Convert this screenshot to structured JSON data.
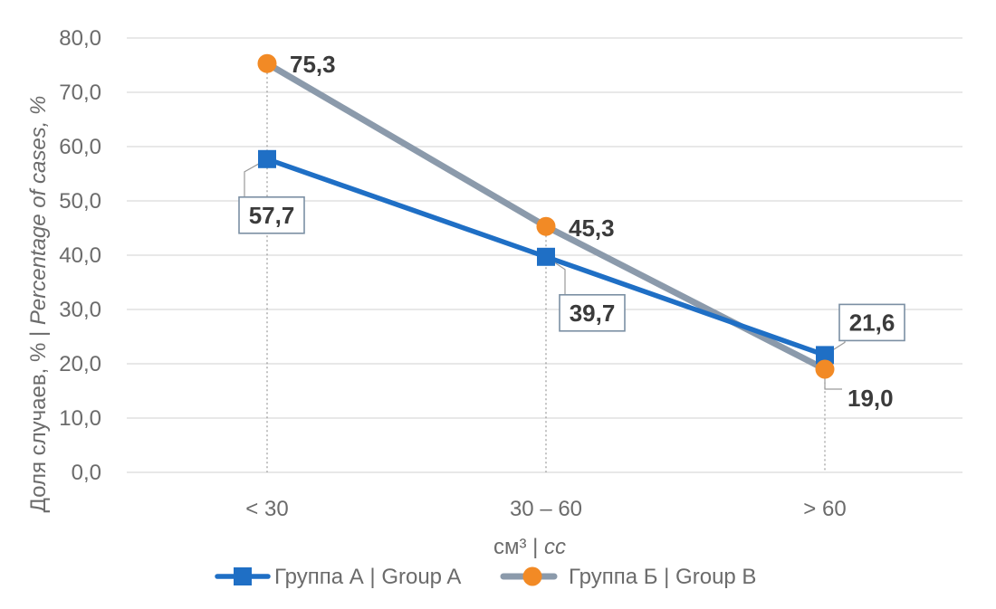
{
  "chart_data": {
    "type": "line",
    "categories": [
      "< 30",
      "30 – 60",
      "> 60"
    ],
    "series": [
      {
        "name": "Группа А | Group A",
        "values": [
          57.7,
          39.7,
          21.6
        ],
        "value_labels": [
          "57,7",
          "39,7",
          "21,6"
        ],
        "color": "#1f6fc5",
        "marker": "square",
        "labels_boxed": true
      },
      {
        "name": "Группа Б | Group B",
        "values": [
          75.3,
          45.3,
          19.0
        ],
        "value_labels": [
          "75,3",
          "45,3",
          "19,0"
        ],
        "color": "#8b9aab",
        "marker_color": "#f28a25",
        "marker": "circle",
        "labels_boxed": false
      }
    ],
    "ylim": [
      0,
      80
    ],
    "y_ticks": [
      0,
      10,
      20,
      30,
      40,
      50,
      60,
      70,
      80
    ],
    "y_tick_labels": [
      "0,0",
      "10,0",
      "20,0",
      "30,0",
      "40,0",
      "50,0",
      "60,0",
      "70,0",
      "80,0"
    ],
    "ylabel": {
      "plain": "Доля  случаев, % | ",
      "italic": "Percentage of cases, %"
    },
    "xlabel": {
      "plain": "см³ | ",
      "italic": "cc"
    },
    "grid": "horizontal",
    "vertical_drop_lines": true,
    "legend_position": "bottom",
    "label_box_border_color": "#7b8fa3",
    "grid_color": "#d9d9d9"
  }
}
